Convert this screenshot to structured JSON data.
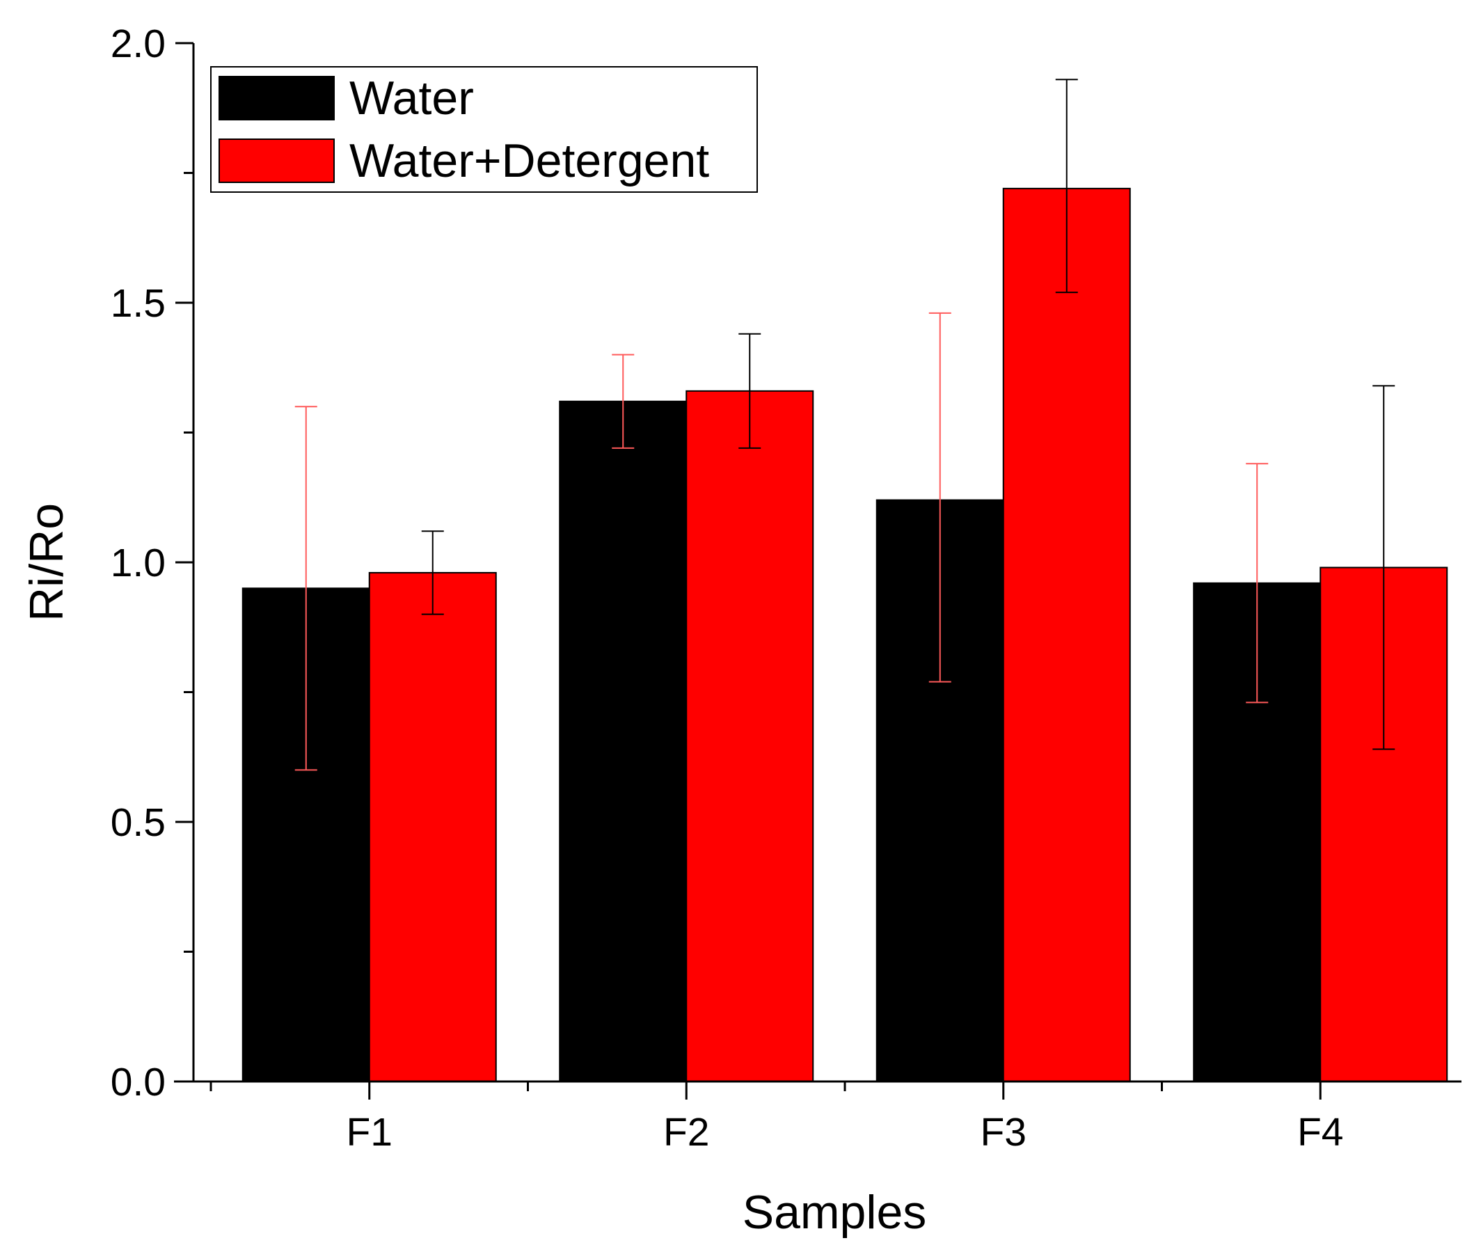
{
  "chart_data": {
    "type": "bar",
    "title": "",
    "xlabel": "Samples",
    "ylabel": "Ri/Ro",
    "categories": [
      "F1",
      "F2",
      "F3",
      "F4"
    ],
    "ylim": [
      0.0,
      2.0
    ],
    "yticks": [
      "0.0",
      "0.5",
      "1.0",
      "1.5",
      "2.0"
    ],
    "y_minor_ticks": [
      0.25,
      0.75,
      1.25,
      1.75
    ],
    "grid": false,
    "legend_position": "top-left",
    "series": [
      {
        "name": "Water",
        "color": "#000000",
        "error_color": "#ff5a5a",
        "values": [
          0.95,
          1.31,
          1.12,
          0.96
        ],
        "error_low": [
          0.6,
          1.22,
          0.77,
          0.73
        ],
        "error_high": [
          1.3,
          1.4,
          1.48,
          1.19
        ]
      },
      {
        "name": "Water+Detergent",
        "color": "#ff0000",
        "error_color": "#000000",
        "values": [
          0.98,
          1.33,
          1.72,
          0.99
        ],
        "error_low": [
          0.9,
          1.22,
          1.52,
          0.64
        ],
        "error_high": [
          1.06,
          1.44,
          1.93,
          1.34
        ]
      }
    ]
  }
}
